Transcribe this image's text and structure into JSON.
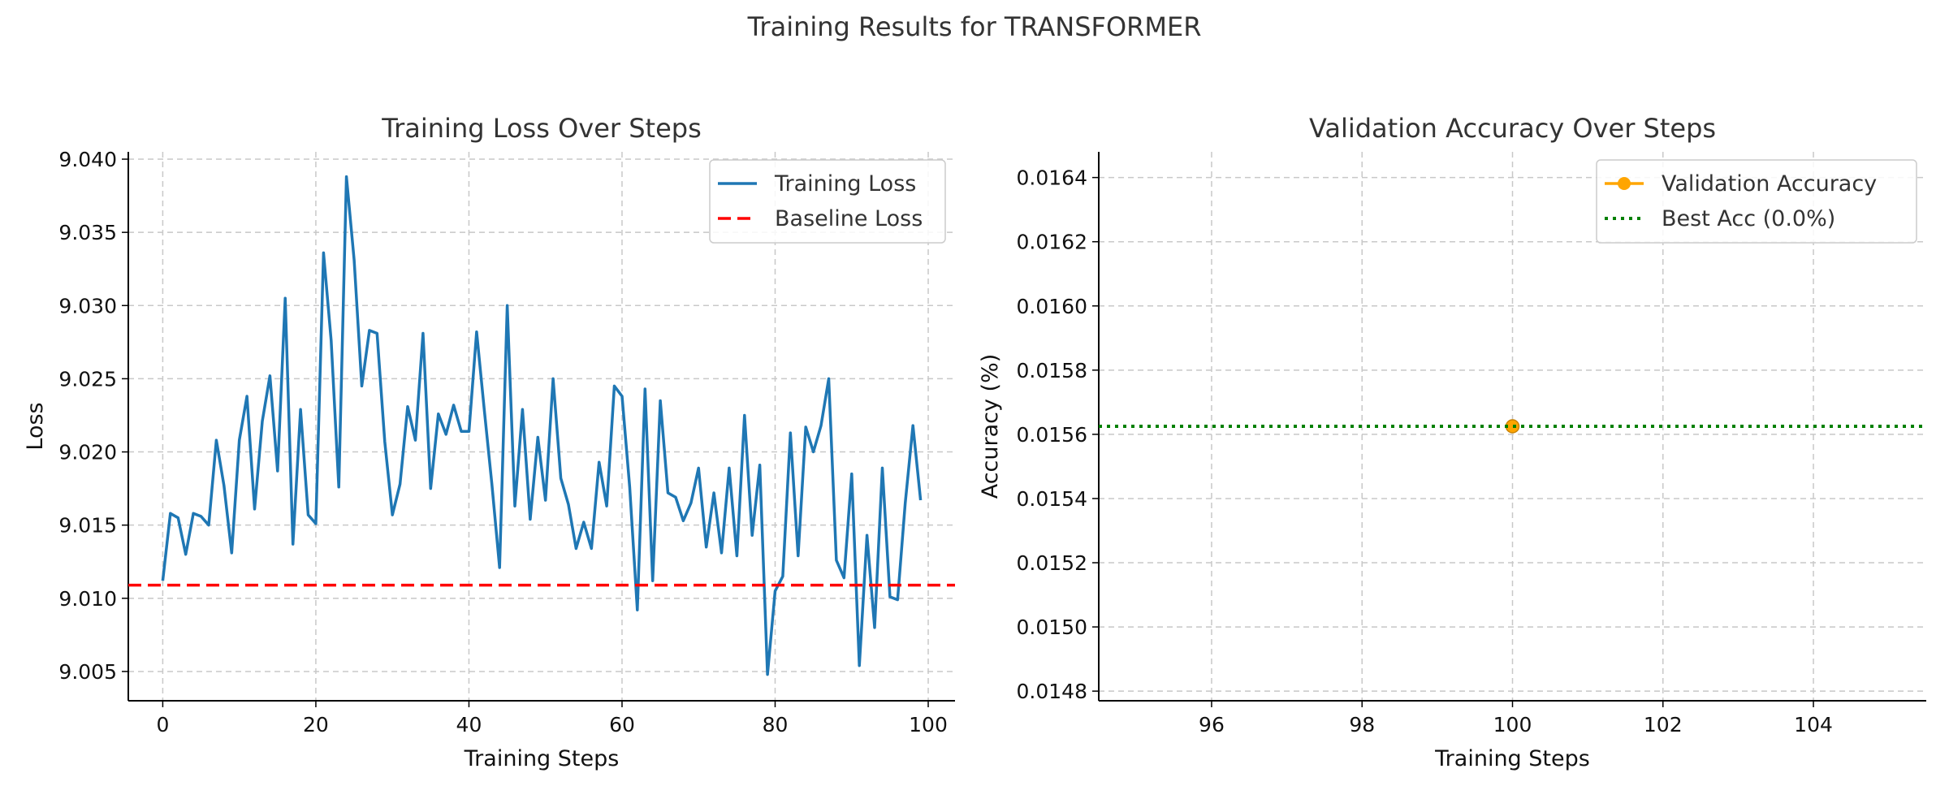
{
  "figure": {
    "suptitle": "Training Results for TRANSFORMER"
  },
  "chart_data": [
    {
      "type": "line",
      "title": "Training Loss Over Steps",
      "xlabel": "Training Steps",
      "ylabel": "Loss",
      "xlim": [
        -4.5,
        103.5
      ],
      "ylim": [
        9.003,
        9.0405
      ],
      "xticks": [
        0,
        20,
        40,
        60,
        80,
        100
      ],
      "yticks": [
        9.005,
        9.01,
        9.015,
        9.02,
        9.025,
        9.03,
        9.035,
        9.04
      ],
      "ytick_labels": [
        "9.005",
        "9.010",
        "9.015",
        "9.020",
        "9.025",
        "9.030",
        "9.035",
        "9.040"
      ],
      "grid": true,
      "legend_position": "top-right",
      "series": [
        {
          "name": "Training Loss",
          "color": "#1f77b4",
          "style": "solid",
          "x": [
            0,
            1,
            2,
            3,
            4,
            5,
            6,
            7,
            8,
            9,
            10,
            11,
            12,
            13,
            14,
            15,
            16,
            17,
            18,
            19,
            20,
            21,
            22,
            23,
            24,
            25,
            26,
            27,
            28,
            29,
            30,
            31,
            32,
            33,
            34,
            35,
            36,
            37,
            38,
            39,
            40,
            41,
            42,
            43,
            44,
            45,
            46,
            47,
            48,
            49,
            50,
            51,
            52,
            53,
            54,
            55,
            56,
            57,
            58,
            59,
            60,
            61,
            62,
            63,
            64,
            65,
            66,
            67,
            68,
            69,
            70,
            71,
            72,
            73,
            74,
            75,
            76,
            77,
            78,
            79,
            80,
            81,
            82,
            83,
            84,
            85,
            86,
            87,
            88,
            89,
            90,
            91,
            92,
            93,
            94,
            95,
            96,
            97,
            98,
            99
          ],
          "y": [
            9.0112,
            9.0158,
            9.0155,
            9.013,
            9.0158,
            9.0156,
            9.015,
            9.0208,
            9.0177,
            9.0131,
            9.0208,
            9.0238,
            9.0161,
            9.0221,
            9.0252,
            9.0187,
            9.0305,
            9.0137,
            9.0229,
            9.0157,
            9.0151,
            9.0336,
            9.0276,
            9.0176,
            9.0388,
            9.0331,
            9.0245,
            9.0283,
            9.0281,
            9.0207,
            9.0157,
            9.0178,
            9.0231,
            9.0208,
            9.0281,
            9.0175,
            9.0226,
            9.0212,
            9.0232,
            9.0214,
            9.0214,
            9.0282,
            9.0229,
            9.0178,
            9.0121,
            9.03,
            9.0163,
            9.0229,
            9.0154,
            9.021,
            9.0167,
            9.025,
            9.0182,
            9.0164,
            9.0134,
            9.0152,
            9.0134,
            9.0193,
            9.0163,
            9.0245,
            9.0238,
            9.0176,
            9.0092,
            9.0243,
            9.0112,
            9.0235,
            9.0172,
            9.0169,
            9.0153,
            9.0165,
            9.0189,
            9.0135,
            9.0172,
            9.0131,
            9.0189,
            9.0129,
            9.0225,
            9.0143,
            9.0191,
            9.0048,
            9.0105,
            9.0115,
            9.0213,
            9.0129,
            9.0217,
            9.02,
            9.0218,
            9.025,
            9.0126,
            9.0114,
            9.0185,
            9.0054,
            9.0143,
            9.008,
            9.0189,
            9.0101,
            9.0099,
            9.0165,
            9.0218,
            9.0167
          ]
        },
        {
          "name": "Baseline Loss",
          "color": "#ff0000",
          "style": "dashed",
          "constant_y": 9.0109
        }
      ]
    },
    {
      "type": "line",
      "title": "Validation Accuracy Over Steps",
      "xlabel": "Training Steps",
      "ylabel": "Accuracy (%)",
      "xlim": [
        94.5,
        105.5
      ],
      "ylim": [
        0.01477,
        0.01648
      ],
      "xticks": [
        96,
        98,
        100,
        102,
        104
      ],
      "yticks": [
        0.0148,
        0.015,
        0.0152,
        0.0154,
        0.0156,
        0.0158,
        0.016,
        0.0162,
        0.0164
      ],
      "ytick_labels": [
        "0.0148",
        "0.0150",
        "0.0152",
        "0.0154",
        "0.0156",
        "0.0158",
        "0.0160",
        "0.0162",
        "0.0164"
      ],
      "grid": true,
      "legend_position": "top-right",
      "series": [
        {
          "name": "Validation Accuracy",
          "color": "#ffa500",
          "style": "solid",
          "marker": "circle",
          "x": [
            100
          ],
          "y": [
            0.015625
          ]
        },
        {
          "name": "Best Acc (0.0%)",
          "color": "#008000",
          "style": "dotted",
          "constant_y": 0.015625
        }
      ]
    }
  ]
}
